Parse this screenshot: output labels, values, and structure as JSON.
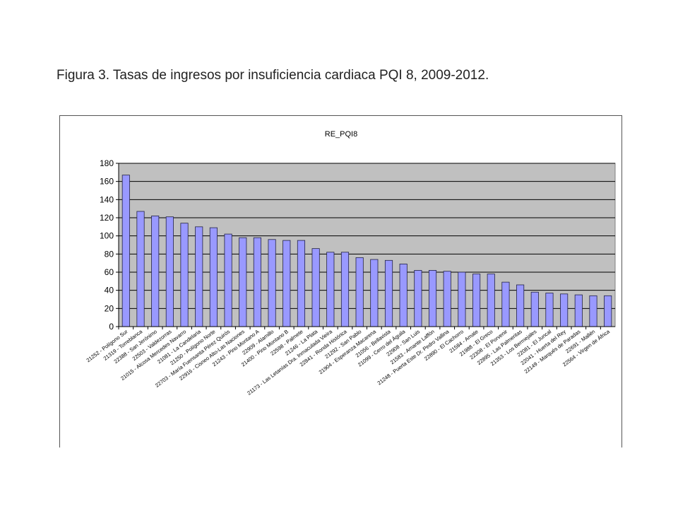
{
  "caption": "Figura 3. Tasas de ingresos por insuficiencia cardiaca PQI 8, 2009-2012.",
  "chart_data": {
    "type": "bar",
    "title": "RE_PQI8",
    "xlabel": "",
    "ylabel": "",
    "ylim": [
      0,
      180
    ],
    "yticks": [
      0,
      20,
      40,
      60,
      80,
      100,
      120,
      140,
      160,
      180
    ],
    "grid": true,
    "legend": "none",
    "colors": {
      "bar_fill": "#9999ff",
      "bar_stroke": "#222244",
      "plot_bg": "#c0c0c0",
      "grid": "#000000"
    },
    "categories": [
      "21252 - Polígono Sur",
      "21319 - Torreblanca",
      "22388 - San Jerónimo",
      "22503 - Valdezorras",
      "21015 - Alcosa Mercedes Navarro",
      "21081 - La Candelaria",
      "21250 - Polígono Norte",
      "22703 - María Fuensanta Pérez Quirós",
      "22916 - Cisneo Alto-Las Naciones",
      "21243 - Pino Montano A",
      "22909 - Alamillo",
      "21400 - Pino Montano B",
      "22598 - Palmete",
      "21246 - La Plata",
      "21173 - Las Letanías Dra. Inmaculada Vieira",
      "22841 - Ronda Histórica",
      "21292 - San Pablo",
      "21904 - Esperanza Macarena",
      "21056 - Bellavista",
      "21099 - Cerro del Águila",
      "22908 - San Luis",
      "21583 - Amante Laffón",
      "21248 - Puerta Este Dr. Pedro Vallina",
      "22890 - El Cachorro",
      "21584 - Amate",
      "21988 - El Greco",
      "22308 - El Porvenir",
      "22895 - Las Palmeritas",
      "21353 - Los Bermejales",
      "22081 - El Juncal",
      "22041 - Huerta del Rey",
      "22149 - Marqués de Paradas",
      "22691 - Mallén",
      "22564 - Virgen de África"
    ],
    "values": [
      167,
      127,
      122,
      121,
      114,
      110,
      109,
      102,
      98,
      98,
      96,
      95,
      95,
      86,
      82,
      82,
      76,
      74,
      73,
      69,
      62,
      62,
      61,
      60,
      58,
      58,
      49,
      46,
      38,
      37,
      36,
      35,
      34,
      34
    ]
  }
}
